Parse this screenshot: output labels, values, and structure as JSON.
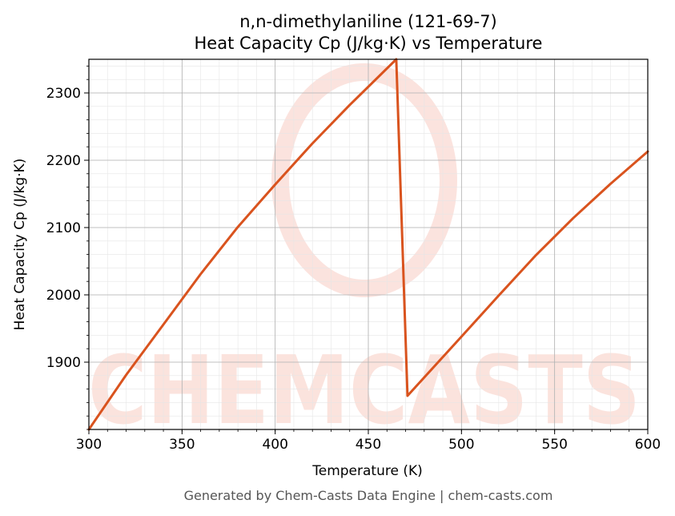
{
  "chart_data": {
    "type": "line",
    "title_line1": "n,n-dimethylaniline (121-69-7)",
    "title_line2": "Heat Capacity Cp (J/kg·K) vs Temperature",
    "xlabel": "Temperature (K)",
    "ylabel": "Heat Capacity Cp (J/kg·K)",
    "xlim": [
      300,
      600
    ],
    "ylim": [
      1800,
      2350
    ],
    "x_ticks": [
      300,
      350,
      400,
      450,
      500,
      550,
      600
    ],
    "y_ticks": [
      1900,
      2000,
      2100,
      2200,
      2300
    ],
    "grid": true,
    "series": [
      {
        "color": "#d9531e",
        "x": [
          300,
          320,
          340,
          360,
          380,
          400,
          420,
          440,
          465,
          471,
          500,
          520,
          540,
          560,
          580,
          600
        ],
        "y": [
          1800,
          1881,
          1956,
          2031,
          2101,
          2164,
          2225,
          2282,
          2350,
          1850,
          1938,
          1999,
          2059,
          2114,
          2165,
          2213
        ]
      }
    ]
  },
  "watermark": {
    "text": "CHEMCASTS",
    "color": "#f7c2b6"
  },
  "footer": "Generated by Chem-Casts Data Engine | chem-casts.com"
}
